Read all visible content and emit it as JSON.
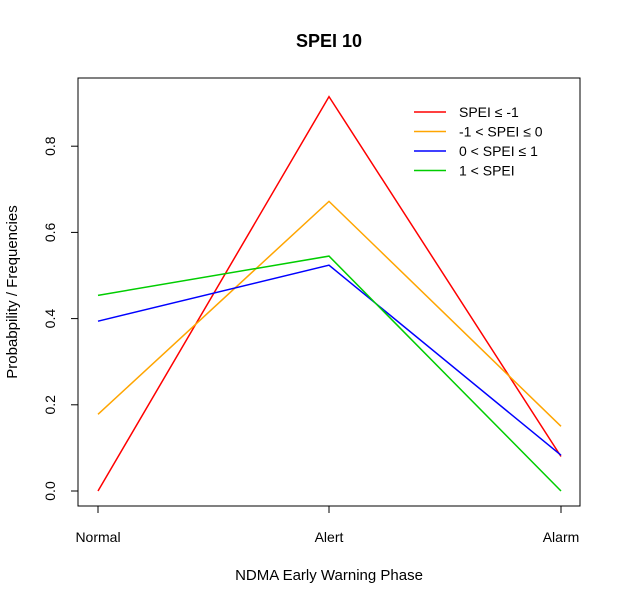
{
  "chart_data": {
    "type": "line",
    "title": "SPEI 10",
    "xlabel": "NDMA Early Warning Phase",
    "ylabel": "Probabpility / Frequencies",
    "categories": [
      "Normal",
      "Alert",
      "Alarm"
    ],
    "ylim": [
      0.0,
      0.92
    ],
    "yticks": [
      "0.0",
      "0.2",
      "0.4",
      "0.6",
      "0.8"
    ],
    "ytick_values": [
      0.0,
      0.2,
      0.4,
      0.6,
      0.8
    ],
    "grid": false,
    "legend_position": "top-right",
    "series": [
      {
        "name": "SPEI ≤ -1",
        "color": "#ff0000",
        "values": [
          0.0,
          0.915,
          0.08
        ]
      },
      {
        "name": "-1 < SPEI ≤ 0",
        "color": "#ffa500",
        "values": [
          0.178,
          0.672,
          0.15
        ]
      },
      {
        "name": "0 < SPEI ≤ 1",
        "color": "#0000ff",
        "values": [
          0.394,
          0.524,
          0.083
        ]
      },
      {
        "name": "1 < SPEI",
        "color": "#00cd00",
        "values": [
          0.454,
          0.545,
          0.0
        ]
      }
    ]
  }
}
